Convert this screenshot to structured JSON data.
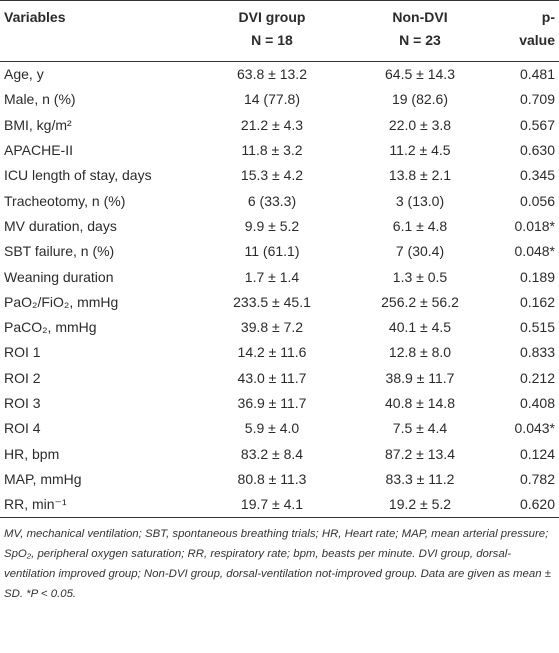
{
  "table": {
    "columns": [
      {
        "label": "Variables"
      },
      {
        "label": "DVI group",
        "n": "N = 18"
      },
      {
        "label": "Non-DVI",
        "n": "N = 23"
      },
      {
        "label": "p-value"
      }
    ],
    "rows": [
      [
        "Age, y",
        "63.8 ± 13.2",
        "64.5 ± 14.3",
        "0.481"
      ],
      [
        "Male, n (%)",
        "14 (77.8)",
        "19 (82.6)",
        "0.709"
      ],
      [
        "BMI, kg/m²",
        "21.2 ± 4.3",
        "22.0 ± 3.8",
        "0.567"
      ],
      [
        "APACHE-II",
        "11.8 ± 3.2",
        "11.2 ± 4.5",
        "0.630"
      ],
      [
        "ICU length of stay, days",
        "15.3 ± 4.2",
        "13.8 ± 2.1",
        "0.345"
      ],
      [
        "Tracheotomy, n (%)",
        "6 (33.3)",
        "3 (13.0)",
        "0.056"
      ],
      [
        "MV duration, days",
        "9.9 ± 5.2",
        "6.1 ± 4.8",
        "0.018*"
      ],
      [
        "SBT failure, n (%)",
        "11 (61.1)",
        "7 (30.4)",
        "0.048*"
      ],
      [
        "Weaning duration",
        "1.7 ± 1.4",
        "1.3 ± 0.5",
        "0.189"
      ],
      [
        "PaO₂/FiO₂, mmHg",
        "233.5 ± 45.1",
        "256.2 ± 56.2",
        "0.162"
      ],
      [
        "PaCO₂, mmHg",
        "39.8 ± 7.2",
        "40.1 ± 4.5",
        "0.515"
      ],
      [
        "ROI 1",
        "14.2 ± 11.6",
        "12.8 ± 8.0",
        "0.833"
      ],
      [
        "ROI 2",
        "43.0 ± 11.7",
        "38.9 ± 11.7",
        "0.212"
      ],
      [
        "ROI 3",
        "36.9 ± 11.7",
        "40.8 ± 14.8",
        "0.408"
      ],
      [
        "ROI 4",
        "5.9 ± 4.0",
        "7.5 ± 4.4",
        "0.043*"
      ],
      [
        "HR, bpm",
        "83.2 ± 8.4",
        "87.2 ± 13.4",
        "0.124"
      ],
      [
        "MAP, mmHg",
        "80.8 ± 11.3",
        "83.3 ± 11.2",
        "0.782"
      ],
      [
        "RR, min⁻¹",
        "19.7 ± 4.1",
        "19.2 ± 5.2",
        "0.620"
      ]
    ],
    "footnote": "MV, mechanical ventilation; SBT, spontaneous breathing trials; HR, Heart rate; MAP, mean arterial pressure; SpO₂, peripheral oxygen saturation; RR, respiratory rate; bpm, beasts per minute. DVI group, dorsal-ventilation improved group; Non-DVI group, dorsal-ventilation not-improved group. Data are given as mean ± SD. *P < 0.05."
  }
}
